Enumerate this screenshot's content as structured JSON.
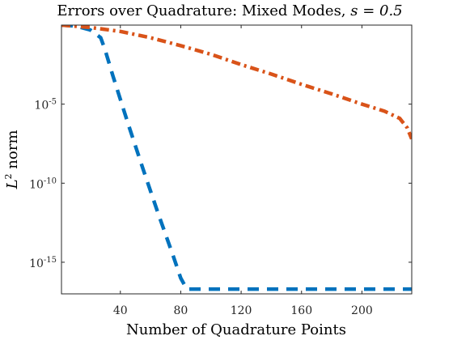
{
  "chart_data": {
    "type": "line",
    "title": "Errors over Quadrature: Mixed Modes, ",
    "title_math": "s = 0.5",
    "xlabel": "Number of Quadrature Points",
    "ylabel_math": "L",
    "ylabel_sup": "2",
    "ylabel_rest": " norm",
    "xlim": [
      1,
      233
    ],
    "ylim_log10": [
      -17,
      0
    ],
    "yscale": "log",
    "grid": false,
    "x_ticks": [
      {
        "value": 40,
        "label": "40"
      },
      {
        "value": 80,
        "label": "80"
      },
      {
        "value": 120,
        "label": "120"
      },
      {
        "value": 160,
        "label": "160"
      },
      {
        "value": 200,
        "label": "200"
      }
    ],
    "y_ticks": [
      {
        "exp": -5,
        "base": "10",
        "sup": "-5"
      },
      {
        "exp": -10,
        "base": "10",
        "sup": "-10"
      },
      {
        "exp": -15,
        "base": "10",
        "sup": "-15"
      }
    ],
    "series": [
      {
        "color": "#0072BD",
        "line_style": "dashed",
        "points": [
          [
            1,
            0.0
          ],
          [
            10,
            -0.05
          ],
          [
            20,
            -0.3
          ],
          [
            27,
            -0.8
          ],
          [
            30,
            -1.6
          ],
          [
            35,
            -3.2
          ],
          [
            45,
            -6.2
          ],
          [
            55,
            -9.1
          ],
          [
            65,
            -11.9
          ],
          [
            75,
            -14.6
          ],
          [
            80,
            -16.0
          ],
          [
            84,
            -16.7
          ],
          [
            233,
            -16.7
          ]
        ]
      },
      {
        "color": "#D95319",
        "line_style": "dash-dot",
        "points": [
          [
            1,
            0.0
          ],
          [
            20,
            -0.15
          ],
          [
            40,
            -0.4
          ],
          [
            60,
            -0.8
          ],
          [
            80,
            -1.3
          ],
          [
            100,
            -1.85
          ],
          [
            120,
            -2.5
          ],
          [
            140,
            -3.1
          ],
          [
            160,
            -3.75
          ],
          [
            180,
            -4.35
          ],
          [
            200,
            -5.0
          ],
          [
            215,
            -5.45
          ],
          [
            225,
            -5.9
          ],
          [
            230,
            -6.5
          ],
          [
            233,
            -7.2
          ]
        ]
      }
    ]
  }
}
